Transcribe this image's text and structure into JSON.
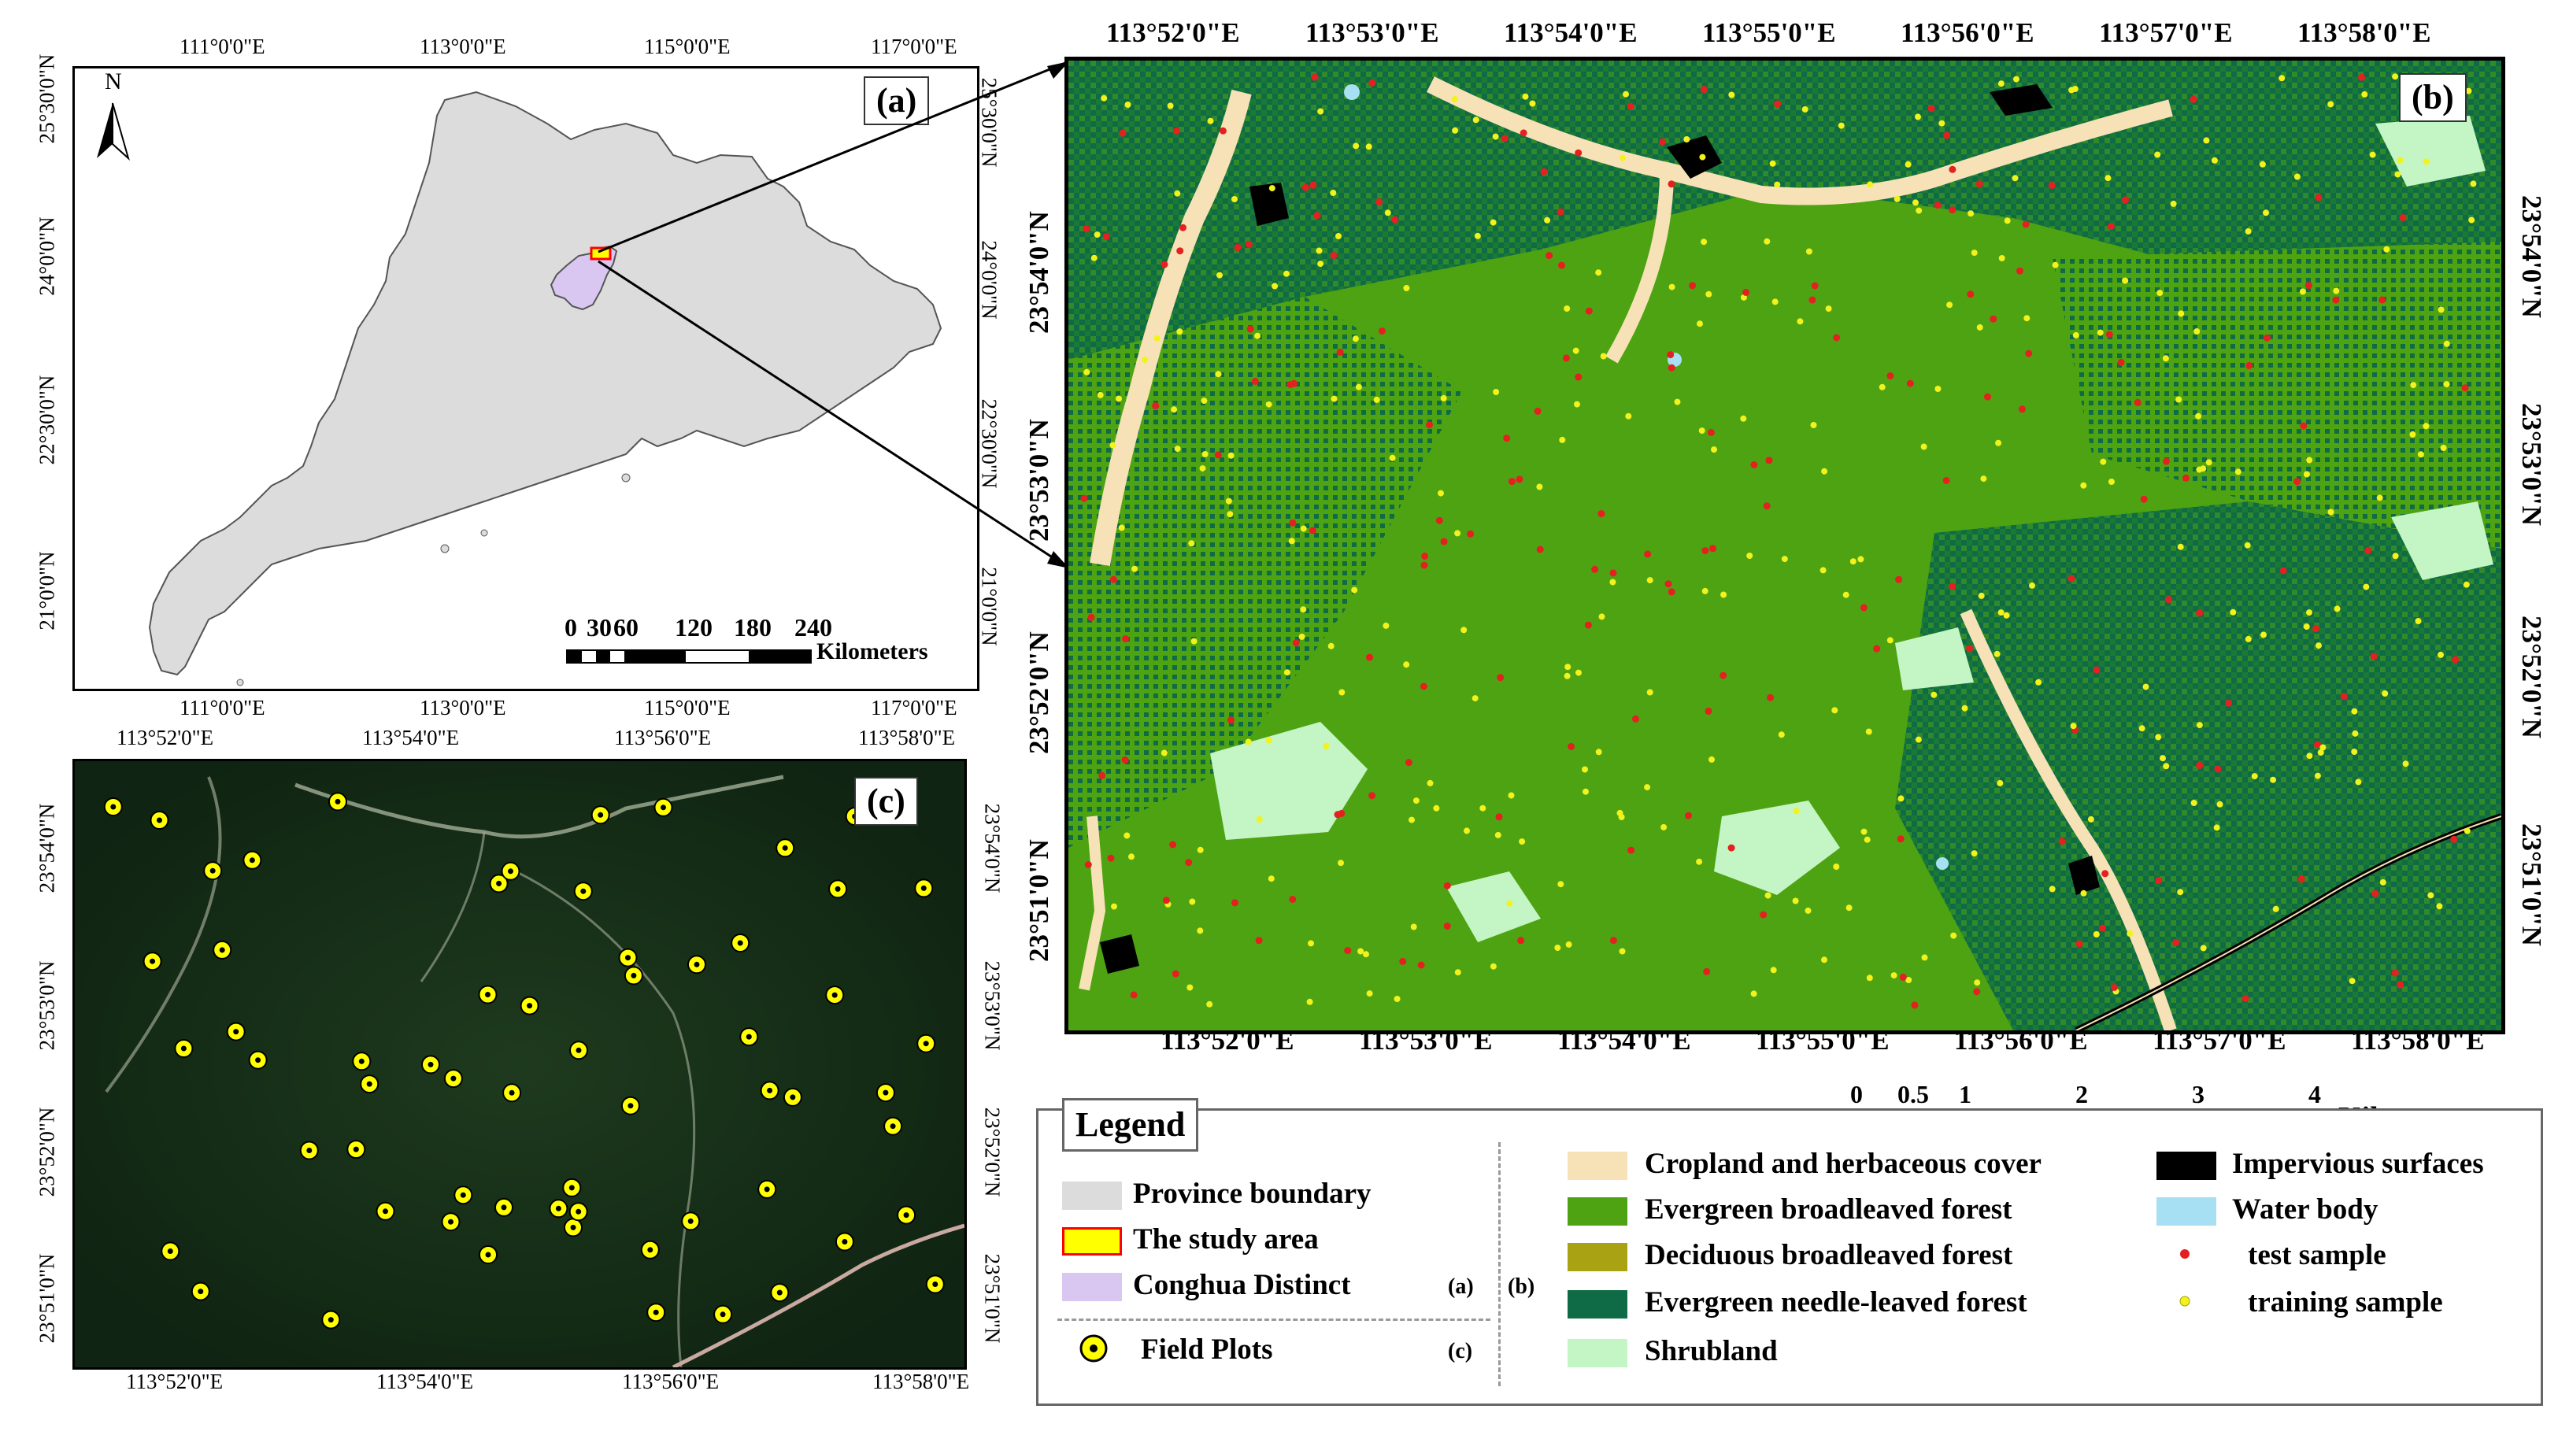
{
  "panel_a": {
    "label": "(a)",
    "north_label": "N",
    "top_lon": [
      "111°0'0\"E",
      "113°0'0\"E",
      "115°0'0\"E",
      "117°0'0\"E"
    ],
    "bottom_lon": [
      "111°0'0\"E",
      "113°0'0\"E",
      "115°0'0\"E",
      "117°0'0\"E"
    ],
    "left_lat": [
      "25°30'0\"N",
      "24°0'0\"N",
      "22°30'0\"N",
      "21°0'0\"N"
    ],
    "right_lat": [
      "25°30'0\"N",
      "24°0'0\"N",
      "22°30'0\"N",
      "21°0'0\"N"
    ],
    "scale_numbers": [
      "0",
      "30",
      "60",
      "120",
      "180",
      "240"
    ],
    "scale_unit": "Kilometers",
    "colors": {
      "province": "#dcdcdc",
      "district": "#d9c7f2",
      "study_fill": "#ffff00",
      "study_border": "#ff0000"
    }
  },
  "panel_b": {
    "label": "(b)",
    "top_lon": [
      "113°52'0\"E",
      "113°53'0\"E",
      "113°54'0\"E",
      "113°55'0\"E",
      "113°56'0\"E",
      "113°57'0\"E",
      "113°58'0\"E"
    ],
    "bottom_lon": [
      "113°52'0\"E",
      "113°53'0\"E",
      "113°54'0\"E",
      "113°55'0\"E",
      "113°56'0\"E",
      "113°57'0\"E",
      "113°58'0\"E"
    ],
    "left_lat": [
      "23°54'0\"N",
      "23°53'0\"N",
      "23°52'0\"N",
      "23°51'0\"N"
    ],
    "right_lat": [
      "23°54'0\"N",
      "23°53'0\"N",
      "23°52'0\"N",
      "23°51'0\"N"
    ],
    "scale_numbers": [
      "0",
      "0.5",
      "1",
      "2",
      "3",
      "4"
    ],
    "scale_unit": "Kilometers"
  },
  "panel_c": {
    "label": "(c)",
    "top_lon": [
      "113°52'0\"E",
      "113°54'0\"E",
      "113°56'0\"E",
      "113°58'0\"E"
    ],
    "bottom_lon": [
      "113°52'0\"E",
      "113°54'0\"E",
      "113°56'0\"E",
      "113°58'0\"E"
    ],
    "left_lat": [
      "23°54'0\"N",
      "23°53'0\"N",
      "23°52'0\"N",
      "23°51'0\"N"
    ],
    "right_lat": [
      "23°54'0\"N",
      "23°53'0\"N",
      "23°52'0\"N",
      "23°51'0\"N"
    ]
  },
  "legend": {
    "title": "Legend",
    "tag_a": "(a)",
    "tag_b": "(b)",
    "tag_c": "(c)",
    "items_a": [
      {
        "label": "Province boundary",
        "color": "#dcdcdc"
      },
      {
        "label": "The study area",
        "color": "#ffff00",
        "border": "#ff0000"
      },
      {
        "label": "Conghua Distinct",
        "color": "#d9c7f2"
      }
    ],
    "item_c": {
      "label": "Field Plots",
      "color": "#ffff00"
    },
    "items_b_col1": [
      {
        "label": "Cropland and herbaceous cover",
        "color": "#f6e2b6"
      },
      {
        "label": "Evergreen broadleaved forest",
        "color": "#4ea312"
      },
      {
        "label": "Deciduous broadleaved forest",
        "color": "#a9a314"
      },
      {
        "label": "Evergreen needle-leaved forest",
        "color": "#0f6b45"
      },
      {
        "label": "Shrubland",
        "color": "#c4f5c4"
      }
    ],
    "items_b_col2": [
      {
        "label": "Impervious surfaces",
        "color": "#000000"
      },
      {
        "label": "Water body",
        "color": "#a6e0f2"
      },
      {
        "label": "test sample",
        "color": "#e52020"
      },
      {
        "label": "training sample",
        "color": "#f2f21c"
      }
    ]
  }
}
